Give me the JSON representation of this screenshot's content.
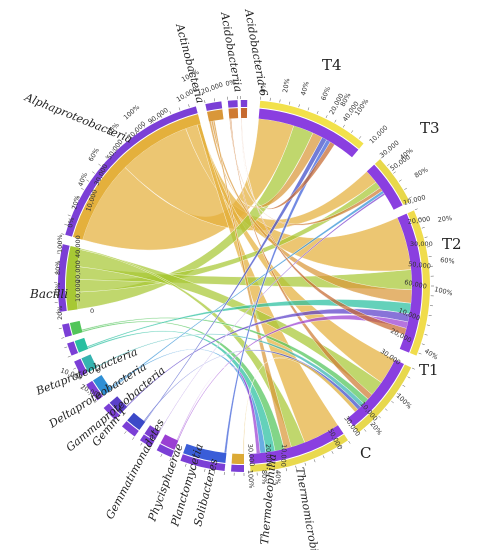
{
  "figure": {
    "samples": [
      "T4",
      "T3",
      "T2",
      "T1",
      "C"
    ],
    "classes": [
      "Acidobacteria-6",
      "Acidobacteriia",
      "Actinobacteria",
      "Alphaproteobacteria",
      "Bacilli",
      "Betaproteobacteria",
      "Deltaproteobacteria",
      "Gammaproteobacteria",
      "Gemm-1",
      "Gemmatimonadetes",
      "Phycisphaerae",
      "Planctomycetia",
      "Solibacteres",
      "Thermoleophilia",
      "Thermomicrobia"
    ],
    "ticks": {
      "zero": "0",
      "k10": "10,000",
      "k20": "20,000",
      "k30": "30,000",
      "k40": "40,000",
      "k50": "50,000",
      "k60": "60,000",
      "k70": "70,000",
      "k80": "80,000",
      "k90": "90,000",
      "p0": "0%",
      "p20": "20%",
      "p40": "40%",
      "p60": "60%",
      "p80": "80%",
      "p100": "100%"
    }
  },
  "chart_data": {
    "type": "chord",
    "segments": [
      {
        "name": "T4",
        "group": "sample",
        "color": "#f2e14b"
      },
      {
        "name": "T3",
        "group": "sample",
        "color": "#e8d84a"
      },
      {
        "name": "T2",
        "group": "sample",
        "color": "#f0dc4c"
      },
      {
        "name": "T1",
        "group": "sample",
        "color": "#e7d84d"
      },
      {
        "name": "C",
        "group": "sample",
        "color": "#e9d94e"
      },
      {
        "name": "Thermomicrobia",
        "group": "class",
        "color": "#dcaa35"
      },
      {
        "name": "Thermoleophilia",
        "group": "class",
        "color": "#3a5dd8"
      },
      {
        "name": "Solibacteres",
        "group": "class",
        "color": "#9a3fd3"
      },
      {
        "name": "Planctomycetia",
        "group": "class",
        "color": "#7a3fcf"
      },
      {
        "name": "Phycisphaerae",
        "group": "class",
        "color": "#3b49c8"
      },
      {
        "name": "Gemmatimonadetes",
        "group": "class",
        "color": "#5a3fc9"
      },
      {
        "name": "Gemm-1",
        "group": "class",
        "color": "#2f8fd5"
      },
      {
        "name": "Gammaproteobacteria",
        "group": "class",
        "color": "#35b3b0"
      },
      {
        "name": "Deltaproteobacteria",
        "group": "class",
        "color": "#28bfa0"
      },
      {
        "name": "Betaproteobacteria",
        "group": "class",
        "color": "#52c55a"
      },
      {
        "name": "Bacilli",
        "group": "class",
        "color": "#a7c834"
      },
      {
        "name": "Alphaproteobacteria",
        "group": "class",
        "color": "#e4b03c"
      },
      {
        "name": "Actinobacteria",
        "group": "class",
        "color": "#d99739"
      },
      {
        "name": "Acidobacteriia",
        "group": "class",
        "color": "#cf7b33"
      },
      {
        "name": "Acidobacteria-6",
        "group": "class",
        "color": "#c66a30"
      }
    ]
  }
}
